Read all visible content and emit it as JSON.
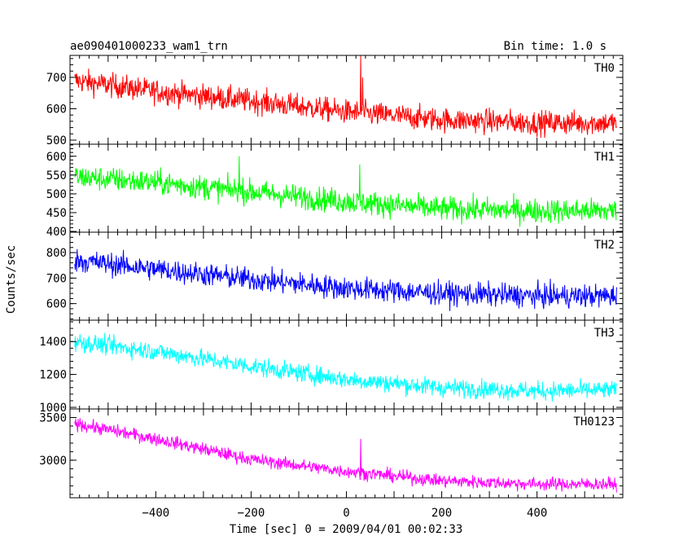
{
  "chart_data": {
    "type": "line",
    "title": "ae090401000233_wam1_trn",
    "bin_time": "Bin time: 1.0 s",
    "xlabel": "Time [sec] 0 = 2009/04/01 00:02:33",
    "ylabel": "Counts/sec",
    "xlim": [
      -580,
      580
    ],
    "x_ticks": [
      -400,
      -200,
      0,
      200,
      400
    ],
    "x_tick_labels": [
      "−400",
      "−200",
      "0",
      "200",
      "400"
    ],
    "x_data_range": [
      -570,
      567
    ],
    "bin_width": 1.0,
    "panels": [
      {
        "name": "TH0",
        "color": "#ff0000",
        "ylim": [
          487,
          770
        ],
        "y_ticks": [
          500,
          600,
          700
        ],
        "y_tick_labels": [
          "500",
          "600",
          "700"
        ],
        "trend": {
          "x": [
            -570,
            -400,
            -200,
            0,
            200,
            400,
            567
          ],
          "y": [
            690,
            655,
            625,
            590,
            565,
            555,
            555
          ]
        },
        "noise_amplitude": 38,
        "spikes": [
          {
            "x": 30,
            "y": 770
          },
          {
            "x": 34,
            "y": 700
          }
        ]
      },
      {
        "name": "TH1",
        "color": "#00ff00",
        "ylim": [
          398,
          632
        ],
        "y_ticks": [
          400,
          450,
          500,
          550,
          600
        ],
        "y_tick_labels": [
          "400",
          "450",
          "500",
          "550",
          "600"
        ],
        "trend": {
          "x": [
            -570,
            -400,
            -200,
            0,
            200,
            400,
            567
          ],
          "y": [
            545,
            530,
            505,
            480,
            460,
            455,
            455
          ]
        },
        "noise_amplitude": 32,
        "spikes": [
          {
            "x": -225,
            "y": 600
          },
          {
            "x": 28,
            "y": 578
          }
        ]
      },
      {
        "name": "TH2",
        "color": "#0000ff",
        "ylim": [
          535,
          880
        ],
        "y_ticks": [
          600,
          700,
          800
        ],
        "y_tick_labels": [
          "600",
          "700",
          "800"
        ],
        "trend": {
          "x": [
            -570,
            -400,
            -200,
            0,
            200,
            400,
            567
          ],
          "y": [
            770,
            735,
            695,
            660,
            640,
            630,
            630
          ]
        },
        "noise_amplitude": 45,
        "spikes": []
      },
      {
        "name": "TH3",
        "color": "#00ffff",
        "ylim": [
          990,
          1530
        ],
        "y_ticks": [
          1000,
          1200,
          1400
        ],
        "y_tick_labels": [
          "1000",
          "1200",
          "1400"
        ],
        "trend": {
          "x": [
            -570,
            -400,
            -200,
            0,
            200,
            400,
            567
          ],
          "y": [
            1400,
            1340,
            1250,
            1170,
            1120,
            1100,
            1105
          ]
        },
        "noise_amplitude": 55,
        "spikes": []
      },
      {
        "name": "TH0123",
        "color": "#ff00ff",
        "ylim": [
          2560,
          3600
        ],
        "y_ticks": [
          3000,
          3500
        ],
        "y_tick_labels": [
          "3000",
          "3500"
        ],
        "trend": {
          "x": [
            -570,
            -400,
            -200,
            0,
            200,
            400,
            567
          ],
          "y": [
            3430,
            3250,
            3010,
            2870,
            2760,
            2720,
            2720
          ]
        },
        "noise_amplitude": 75,
        "spikes": [
          {
            "x": 30,
            "y": 3250
          }
        ]
      }
    ]
  }
}
